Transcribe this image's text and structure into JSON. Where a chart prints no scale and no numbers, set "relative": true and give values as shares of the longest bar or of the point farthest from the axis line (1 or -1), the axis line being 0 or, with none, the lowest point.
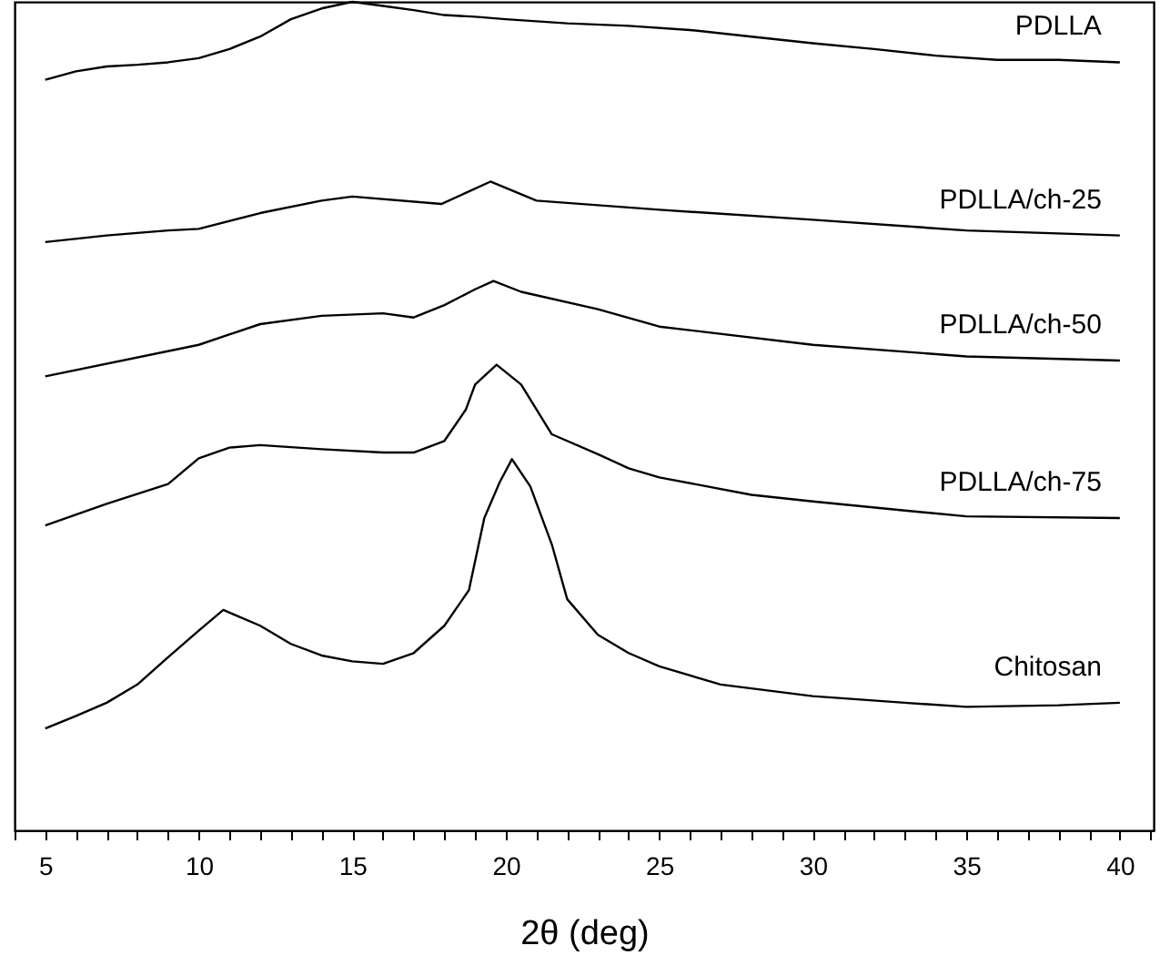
{
  "chart_data": {
    "type": "line",
    "xlabel": "2θ (deg)",
    "relative": true,
    "tick_labels": "x",
    "grid": false,
    "legend": false,
    "xlim": [
      4,
      41.1
    ],
    "xticks": [
      {
        "value": 4,
        "label": null
      },
      5,
      {
        "value": 6,
        "label": null
      },
      {
        "value": 7,
        "label": null
      },
      {
        "value": 8,
        "label": null
      },
      {
        "value": 9,
        "label": null
      },
      10,
      {
        "value": 11,
        "label": null
      },
      {
        "value": 12,
        "label": null
      },
      {
        "value": 13,
        "label": null
      },
      {
        "value": 14,
        "label": null
      },
      15,
      {
        "value": 16,
        "label": null
      },
      {
        "value": 17,
        "label": null
      },
      {
        "value": 18,
        "label": null
      },
      {
        "value": 19,
        "label": null
      },
      20,
      {
        "value": 21,
        "label": null
      },
      {
        "value": 22,
        "label": null
      },
      {
        "value": 23,
        "label": null
      },
      {
        "value": 24,
        "label": null
      },
      25,
      {
        "value": 26,
        "label": null
      },
      {
        "value": 27,
        "label": null
      },
      {
        "value": 28,
        "label": null
      },
      {
        "value": 29,
        "label": null
      },
      30,
      {
        "value": 31,
        "label": null
      },
      {
        "value": 32,
        "label": null
      },
      {
        "value": 33,
        "label": null
      },
      {
        "value": 34,
        "label": null
      },
      35,
      {
        "value": 36,
        "label": null
      },
      {
        "value": 37,
        "label": null
      },
      {
        "value": 38,
        "label": null
      },
      {
        "value": 39,
        "label": null
      },
      40,
      {
        "value": 41,
        "label": null
      }
    ],
    "series": [
      {
        "name": "PDLLA",
        "color": "#000000",
        "x": [
          5,
          6,
          7,
          8,
          9,
          10,
          11,
          12,
          13,
          14,
          15,
          16,
          17,
          18,
          19,
          20,
          22,
          24,
          26,
          28,
          30,
          32,
          34,
          36,
          38,
          40
        ],
        "values": [
          0.906,
          0.916,
          0.922,
          0.924,
          0.927,
          0.932,
          0.943,
          0.958,
          0.979,
          0.992,
          1.0,
          0.995,
          0.99,
          0.984,
          0.982,
          0.979,
          0.974,
          0.971,
          0.966,
          0.958,
          0.95,
          0.943,
          0.935,
          0.93,
          0.93,
          0.927
        ]
      },
      {
        "name": "PDLLA/ch-25",
        "color": "#000000",
        "x": [
          5,
          7,
          9,
          10,
          12,
          14,
          15,
          17.9,
          19.5,
          21,
          25,
          30,
          35,
          40
        ],
        "values": [
          0.71,
          0.718,
          0.724,
          0.726,
          0.745,
          0.76,
          0.765,
          0.756,
          0.783,
          0.76,
          0.749,
          0.737,
          0.724,
          0.718
        ]
      },
      {
        "name": "PDLLA/ch-50",
        "color": "#000000",
        "x": [
          5,
          10,
          12,
          14,
          16,
          17,
          18,
          19,
          19.6,
          20.5,
          23,
          25,
          30,
          35,
          40
        ],
        "values": [
          0.548,
          0.586,
          0.611,
          0.621,
          0.624,
          0.619,
          0.634,
          0.653,
          0.663,
          0.65,
          0.629,
          0.608,
          0.586,
          0.572,
          0.567
        ]
      },
      {
        "name": "PDLLA/ch-75",
        "color": "#000000",
        "x": [
          5,
          7,
          9,
          10,
          11,
          12,
          14,
          16,
          17,
          18,
          18.7,
          19,
          19.7,
          20.5,
          21.5,
          23,
          24,
          25,
          28,
          30,
          33,
          35,
          40
        ],
        "values": [
          0.368,
          0.394,
          0.418,
          0.449,
          0.462,
          0.465,
          0.46,
          0.456,
          0.456,
          0.47,
          0.508,
          0.538,
          0.562,
          0.538,
          0.478,
          0.454,
          0.437,
          0.426,
          0.405,
          0.397,
          0.386,
          0.379,
          0.377
        ]
      },
      {
        "name": "Chitosan",
        "color": "#000000",
        "x": [
          5,
          6,
          7,
          8,
          9,
          10,
          10.8,
          12,
          13,
          14,
          15,
          16,
          17,
          18,
          18.8,
          19.3,
          19.8,
          20.2,
          20.8,
          21.5,
          22,
          23,
          24,
          25,
          27,
          30,
          33,
          35,
          38,
          40
        ],
        "values": [
          0.123,
          0.138,
          0.154,
          0.176,
          0.209,
          0.241,
          0.266,
          0.247,
          0.225,
          0.211,
          0.204,
          0.201,
          0.214,
          0.247,
          0.29,
          0.377,
          0.42,
          0.448,
          0.415,
          0.345,
          0.279,
          0.236,
          0.214,
          0.198,
          0.176,
          0.162,
          0.154,
          0.149,
          0.151,
          0.154
        ]
      }
    ]
  }
}
